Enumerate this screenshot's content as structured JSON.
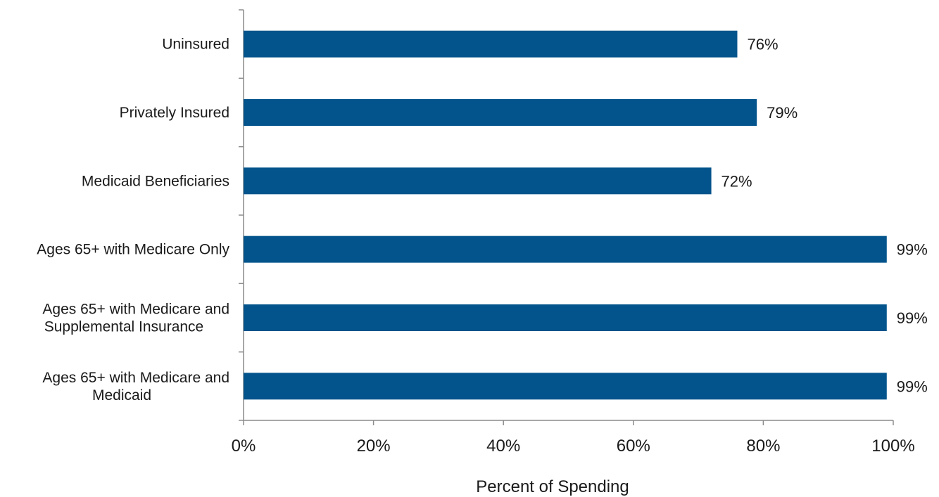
{
  "chart_data": {
    "type": "bar",
    "orientation": "horizontal",
    "categories": [
      [
        "Uninsured"
      ],
      [
        "Privately Insured"
      ],
      [
        "Medicaid Beneficiaries"
      ],
      [
        "Ages 65+ with Medicare Only"
      ],
      [
        "Ages 65+ with Medicare and",
        "Supplemental Insurance"
      ],
      [
        "Ages 65+ with Medicare and",
        "Medicaid"
      ]
    ],
    "values": [
      76,
      79,
      72,
      99,
      99,
      99
    ],
    "value_labels": [
      "76%",
      "79%",
      "72%",
      "99%",
      "99%",
      "99%"
    ],
    "xlabel": "Percent  of Spending",
    "xlim": [
      0,
      100
    ],
    "xticks": [
      0,
      20,
      40,
      60,
      80,
      100
    ],
    "xtick_labels": [
      "0%",
      "20%",
      "40%",
      "60%",
      "80%",
      "100%"
    ],
    "bar_color": "#03548c",
    "grid": false,
    "legend": false
  }
}
